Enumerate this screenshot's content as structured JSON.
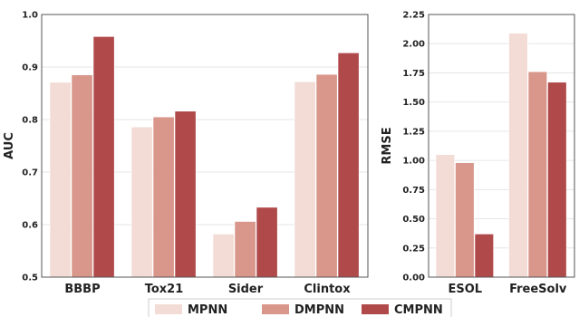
{
  "legend": {
    "position": "bottom-center",
    "entries": [
      {
        "label": "MPNN",
        "color": "#f2dcd5"
      },
      {
        "label": "DMPNN",
        "color": "#d9968a"
      },
      {
        "label": "CMPNN",
        "color": "#b04a4a"
      }
    ]
  },
  "chart_data": [
    {
      "type": "bar",
      "title": "",
      "xlabel": "",
      "ylabel": "AUC",
      "ylim": [
        0.5,
        1.0
      ],
      "yticks": [
        "0.5",
        "0.6",
        "0.7",
        "0.8",
        "0.9",
        "1.0"
      ],
      "grid": "horizontal",
      "categories": [
        "BBBP",
        "Tox21",
        "Sider",
        "Clintox"
      ],
      "series": [
        {
          "name": "MPNN",
          "values": [
            0.871,
            0.786,
            0.582,
            0.872
          ]
        },
        {
          "name": "DMPNN",
          "values": [
            0.885,
            0.805,
            0.606,
            0.886
          ]
        },
        {
          "name": "CMPNN",
          "values": [
            0.958,
            0.816,
            0.633,
            0.927
          ]
        }
      ]
    },
    {
      "type": "bar",
      "title": "",
      "xlabel": "",
      "ylabel": "RMSE",
      "ylim": [
        0.0,
        2.25
      ],
      "yticks": [
        "0.00",
        "0.25",
        "0.50",
        "0.75",
        "1.00",
        "1.25",
        "1.50",
        "1.75",
        "2.00",
        "2.25"
      ],
      "grid": "horizontal",
      "categories": [
        "ESOL",
        "FreeSolv"
      ],
      "series": [
        {
          "name": "MPNN",
          "values": [
            1.05,
            2.09
          ]
        },
        {
          "name": "DMPNN",
          "values": [
            0.98,
            1.76
          ]
        },
        {
          "name": "CMPNN",
          "values": [
            0.37,
            1.67
          ]
        }
      ]
    }
  ]
}
